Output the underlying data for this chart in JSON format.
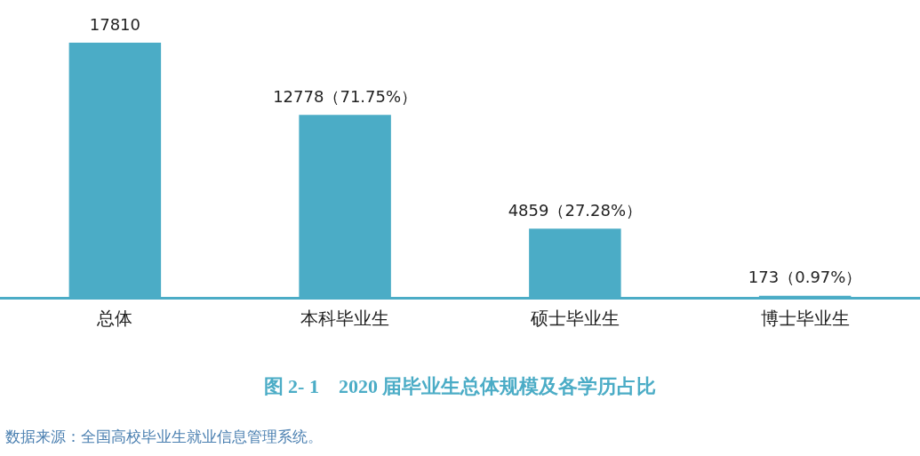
{
  "chart_data": {
    "type": "bar",
    "title": "图 2- 1　2020 届毕业生总体规模及各学历占比",
    "categories": [
      "总体",
      "本科毕业生",
      "硕士毕业生",
      "博士毕业生"
    ],
    "values": [
      17810,
      12778,
      4859,
      173
    ],
    "value_labels": [
      "17810",
      "12778（71.75%）",
      "4859（27.28%）",
      "173（0.97%）"
    ],
    "color": "#4bacc6",
    "annotations": [
      "数据来源：全国高校毕业生就业信息管理系统。"
    ]
  }
}
